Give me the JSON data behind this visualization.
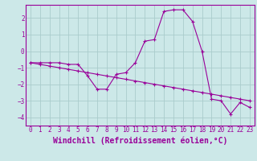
{
  "xlabel": "Windchill (Refroidissement éolien,°C)",
  "ylabel": "",
  "background_color": "#cce8e8",
  "grid_color": "#aacccc",
  "line_color": "#990099",
  "marker_color": "#990099",
  "xlim": [
    -0.5,
    23.5
  ],
  "ylim": [
    -4.5,
    2.8
  ],
  "xticks": [
    0,
    1,
    2,
    3,
    4,
    5,
    6,
    7,
    8,
    9,
    10,
    11,
    12,
    13,
    14,
    15,
    16,
    17,
    18,
    19,
    20,
    21,
    22,
    23
  ],
  "yticks": [
    -4,
    -3,
    -2,
    -1,
    0,
    1,
    2
  ],
  "hours": [
    0,
    1,
    2,
    3,
    4,
    5,
    6,
    7,
    8,
    9,
    10,
    11,
    12,
    13,
    14,
    15,
    16,
    17,
    18,
    19,
    20,
    21,
    22,
    23
  ],
  "temp_line1": [
    -0.7,
    -0.7,
    -0.7,
    -0.7,
    -0.8,
    -0.8,
    -1.5,
    -2.3,
    -2.3,
    -1.4,
    -1.3,
    -0.7,
    0.6,
    0.7,
    2.4,
    2.5,
    2.5,
    1.8,
    0.0,
    -2.9,
    -3.0,
    -3.8,
    -3.1,
    -3.4
  ],
  "temp_line2": [
    -0.7,
    -0.8,
    -0.9,
    -1.0,
    -1.1,
    -1.2,
    -1.3,
    -1.4,
    -1.5,
    -1.6,
    -1.7,
    -1.8,
    -1.9,
    -2.0,
    -2.1,
    -2.2,
    -2.3,
    -2.4,
    -2.5,
    -2.6,
    -2.7,
    -2.8,
    -2.9,
    -3.0
  ],
  "font_family": "monospace",
  "tick_fontsize": 5.5,
  "label_fontsize": 7
}
